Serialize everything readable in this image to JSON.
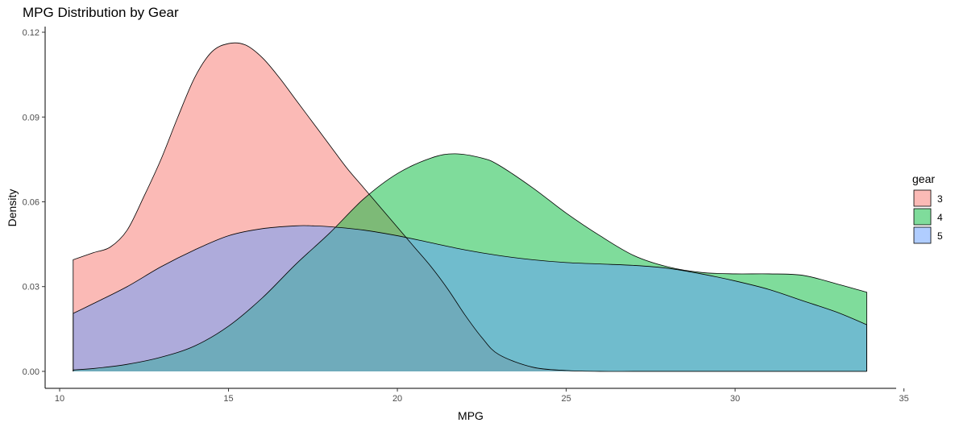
{
  "chart_data": {
    "type": "area",
    "title": "MPG Distribution by Gear",
    "xlabel": "MPG",
    "ylabel": "Density",
    "xlim": [
      9.57,
      34.77
    ],
    "ylim": [
      -0.006,
      0.122
    ],
    "x_ticks": [
      10,
      15,
      20,
      25,
      30,
      35
    ],
    "y_ticks": [
      0.0,
      0.03,
      0.06,
      0.09,
      0.12
    ],
    "y_tick_labels": [
      "0.00",
      "0.03",
      "0.06",
      "0.09",
      "0.12"
    ],
    "grid": false,
    "legend": {
      "title": "gear",
      "placement": "right"
    },
    "fill_opacity": 0.5,
    "series": [
      {
        "name": "3",
        "color": "#F8766D",
        "points": [
          [
            10.4,
            0.0395
          ],
          [
            11.0,
            0.042
          ],
          [
            11.5,
            0.044
          ],
          [
            12.0,
            0.05
          ],
          [
            12.5,
            0.062
          ],
          [
            13.0,
            0.075
          ],
          [
            13.5,
            0.09
          ],
          [
            14.0,
            0.104
          ],
          [
            14.5,
            0.113
          ],
          [
            15.0,
            0.116
          ],
          [
            15.5,
            0.1155
          ],
          [
            16.0,
            0.111
          ],
          [
            16.5,
            0.104
          ],
          [
            17.0,
            0.096
          ],
          [
            17.5,
            0.088
          ],
          [
            18.0,
            0.08
          ],
          [
            18.5,
            0.072
          ],
          [
            19.0,
            0.065
          ],
          [
            19.5,
            0.058
          ],
          [
            20.0,
            0.051
          ],
          [
            20.5,
            0.044
          ],
          [
            21.0,
            0.037
          ],
          [
            21.5,
            0.029
          ],
          [
            22.0,
            0.02
          ],
          [
            22.5,
            0.012
          ],
          [
            23.0,
            0.006
          ],
          [
            24.0,
            0.0015
          ],
          [
            25.0,
            0.0003
          ],
          [
            26.0,
            0.0
          ],
          [
            27.0,
            0.0
          ],
          [
            28.0,
            0.0
          ],
          [
            30.0,
            0.0
          ],
          [
            33.9,
            0.0
          ]
        ]
      },
      {
        "name": "4",
        "color": "#00BA38",
        "points": [
          [
            10.4,
            0.0005
          ],
          [
            11.0,
            0.001
          ],
          [
            12.0,
            0.0025
          ],
          [
            13.0,
            0.005
          ],
          [
            14.0,
            0.009
          ],
          [
            15.0,
            0.016
          ],
          [
            16.0,
            0.026
          ],
          [
            17.0,
            0.038
          ],
          [
            18.0,
            0.049
          ],
          [
            19.0,
            0.061
          ],
          [
            20.0,
            0.07
          ],
          [
            21.0,
            0.0755
          ],
          [
            21.7,
            0.077
          ],
          [
            22.5,
            0.0755
          ],
          [
            23.0,
            0.073
          ],
          [
            24.0,
            0.065
          ],
          [
            25.0,
            0.056
          ],
          [
            26.0,
            0.048
          ],
          [
            27.0,
            0.041
          ],
          [
            28.0,
            0.037
          ],
          [
            29.0,
            0.035
          ],
          [
            30.0,
            0.0345
          ],
          [
            31.0,
            0.0345
          ],
          [
            32.0,
            0.034
          ],
          [
            33.0,
            0.031
          ],
          [
            33.9,
            0.028
          ]
        ]
      },
      {
        "name": "5",
        "color": "#619CFF",
        "points": [
          [
            10.4,
            0.0205
          ],
          [
            11.0,
            0.024
          ],
          [
            12.0,
            0.03
          ],
          [
            13.0,
            0.037
          ],
          [
            14.0,
            0.043
          ],
          [
            15.0,
            0.048
          ],
          [
            16.0,
            0.0505
          ],
          [
            17.0,
            0.0515
          ],
          [
            17.5,
            0.0515
          ],
          [
            18.0,
            0.0512
          ],
          [
            19.0,
            0.05
          ],
          [
            20.0,
            0.048
          ],
          [
            21.0,
            0.0455
          ],
          [
            22.0,
            0.043
          ],
          [
            23.0,
            0.041
          ],
          [
            24.0,
            0.0395
          ],
          [
            25.0,
            0.0385
          ],
          [
            26.0,
            0.038
          ],
          [
            27.0,
            0.0375
          ],
          [
            28.0,
            0.0365
          ],
          [
            29.0,
            0.0345
          ],
          [
            30.0,
            0.032
          ],
          [
            31.0,
            0.029
          ],
          [
            32.0,
            0.025
          ],
          [
            33.0,
            0.021
          ],
          [
            33.9,
            0.0165
          ]
        ]
      }
    ]
  }
}
